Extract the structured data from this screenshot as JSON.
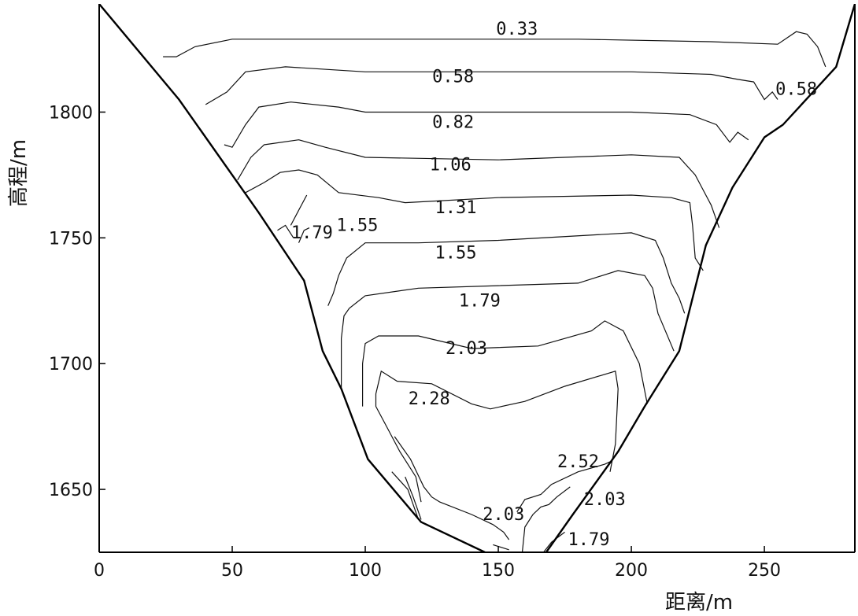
{
  "chart_data": {
    "type": "contour",
    "title": "",
    "xlabel": "距离/m",
    "ylabel": "高程/m",
    "xlim": [
      0,
      284
    ],
    "ylim": [
      1625,
      1843
    ],
    "x_ticks": [
      "0",
      "50",
      "100",
      "150",
      "200",
      "250"
    ],
    "y_ticks": [
      "1650",
      "1700",
      "1750",
      "1800"
    ],
    "valley_boundary": {
      "left": [
        [
          0,
          1843
        ],
        [
          30,
          1805
        ],
        [
          60,
          1760
        ],
        [
          77,
          1733
        ],
        [
          84,
          1705
        ],
        [
          91,
          1690
        ],
        [
          101,
          1662
        ],
        [
          121,
          1637
        ],
        [
          145,
          1625
        ]
      ],
      "right": [
        [
          168,
          1625
        ],
        [
          178,
          1640
        ],
        [
          195,
          1665
        ],
        [
          205,
          1683
        ],
        [
          218,
          1705
        ],
        [
          228,
          1747
        ],
        [
          238,
          1770
        ],
        [
          250,
          1790
        ],
        [
          257,
          1795
        ],
        [
          277,
          1818
        ],
        [
          284,
          1843
        ]
      ]
    },
    "contour_lines": [
      {
        "value": "0.33",
        "points": [
          [
            24,
            1822
          ],
          [
            29,
            1822
          ],
          [
            36,
            1826
          ],
          [
            50,
            1829
          ],
          [
            70,
            1829
          ],
          [
            120,
            1829
          ],
          [
            180,
            1829
          ],
          [
            230,
            1828
          ],
          [
            255,
            1827
          ],
          [
            262,
            1832
          ],
          [
            266,
            1831
          ],
          [
            270,
            1826
          ],
          [
            273,
            1818
          ]
        ]
      },
      {
        "value": "0.58",
        "points": [
          [
            40,
            1803
          ],
          [
            48,
            1808
          ],
          [
            55,
            1816
          ],
          [
            70,
            1818
          ],
          [
            100,
            1816
          ],
          [
            150,
            1816
          ],
          [
            200,
            1816
          ],
          [
            230,
            1815
          ],
          [
            240,
            1813
          ],
          [
            246,
            1812
          ],
          [
            250,
            1805
          ],
          [
            253,
            1808
          ],
          [
            255,
            1805
          ]
        ]
      },
      {
        "value": "0.82",
        "points": [
          [
            47,
            1787
          ],
          [
            50,
            1786
          ],
          [
            55,
            1795
          ],
          [
            60,
            1802
          ],
          [
            72,
            1804
          ],
          [
            90,
            1802
          ],
          [
            100,
            1800
          ],
          [
            150,
            1800
          ],
          [
            200,
            1800
          ],
          [
            222,
            1799
          ],
          [
            232,
            1795
          ],
          [
            237,
            1788
          ],
          [
            240,
            1792
          ],
          [
            244,
            1789
          ]
        ]
      },
      {
        "value": "1.06",
        "points": [
          [
            52,
            1773
          ],
          [
            57,
            1782
          ],
          [
            62,
            1787
          ],
          [
            75,
            1789
          ],
          [
            85,
            1786
          ],
          [
            100,
            1782
          ],
          [
            150,
            1781
          ],
          [
            200,
            1783
          ],
          [
            218,
            1782
          ],
          [
            224,
            1775
          ],
          [
            230,
            1763
          ],
          [
            233,
            1754
          ]
        ]
      },
      {
        "value": "1.31",
        "points": [
          [
            55,
            1768
          ],
          [
            62,
            1772
          ],
          [
            68,
            1776
          ],
          [
            75,
            1777
          ],
          [
            82,
            1775
          ],
          [
            90,
            1768
          ],
          [
            105,
            1766
          ],
          [
            115,
            1764
          ],
          [
            150,
            1766
          ],
          [
            200,
            1767
          ],
          [
            215,
            1766
          ],
          [
            222,
            1764
          ],
          [
            223,
            1755
          ],
          [
            224,
            1742
          ],
          [
            227,
            1737
          ]
        ]
      },
      {
        "value": "1.55",
        "points": [
          [
            86,
            1723
          ],
          [
            88,
            1728
          ],
          [
            90,
            1735
          ],
          [
            93,
            1742
          ],
          [
            100,
            1748
          ],
          [
            120,
            1748
          ],
          [
            150,
            1749
          ],
          [
            200,
            1752
          ],
          [
            209,
            1749
          ],
          [
            212,
            1742
          ],
          [
            215,
            1732
          ],
          [
            218,
            1726
          ],
          [
            220,
            1720
          ]
        ]
      },
      {
        "value": "1.79",
        "points": [
          [
            91,
            1690
          ],
          [
            91,
            1710
          ],
          [
            92,
            1719
          ],
          [
            94,
            1722
          ],
          [
            100,
            1727
          ],
          [
            120,
            1730
          ],
          [
            150,
            1731
          ],
          [
            180,
            1732
          ],
          [
            195,
            1737
          ],
          [
            205,
            1735
          ],
          [
            208,
            1730
          ],
          [
            210,
            1720
          ],
          [
            216,
            1705
          ]
        ]
      },
      {
        "value": "2.03",
        "points": [
          [
            99,
            1683
          ],
          [
            99,
            1700
          ],
          [
            100,
            1708
          ],
          [
            105,
            1711
          ],
          [
            120,
            1711
          ],
          [
            140,
            1706
          ],
          [
            165,
            1707
          ],
          [
            185,
            1713
          ],
          [
            190,
            1717
          ],
          [
            197,
            1713
          ],
          [
            203,
            1700
          ],
          [
            206,
            1684
          ]
        ]
      },
      {
        "value": "2.28",
        "points": [
          [
            121,
            1645
          ],
          [
            119,
            1655
          ],
          [
            113,
            1665
          ],
          [
            108,
            1675
          ],
          [
            104,
            1683
          ],
          [
            104,
            1688
          ],
          [
            106,
            1697
          ],
          [
            112,
            1693
          ],
          [
            125,
            1692
          ],
          [
            140,
            1684
          ],
          [
            147,
            1682
          ],
          [
            160,
            1685
          ],
          [
            175,
            1691
          ],
          [
            194,
            1697
          ],
          [
            195,
            1690
          ],
          [
            194,
            1668
          ],
          [
            192,
            1657
          ]
        ]
      },
      {
        "value": "2.52",
        "points": [
          [
            157,
            1641
          ],
          [
            160,
            1646
          ],
          [
            166,
            1648
          ],
          [
            170,
            1652
          ],
          [
            180,
            1657
          ],
          [
            190,
            1660
          ],
          [
            192,
            1661
          ]
        ]
      },
      {
        "value": "2.03",
        "points": [
          [
            159,
            1625
          ],
          [
            160,
            1635
          ],
          [
            163,
            1640
          ],
          [
            166,
            1643
          ],
          [
            169,
            1644
          ],
          [
            172,
            1647
          ],
          [
            177,
            1651
          ]
        ]
      },
      {
        "value": "1.79",
        "points": [
          [
            167,
            1625
          ],
          [
            170,
            1629
          ],
          [
            175,
            1633
          ]
        ]
      },
      {
        "value": "",
        "points": [
          [
            111,
            1671
          ],
          [
            117,
            1662
          ],
          [
            122,
            1651
          ],
          [
            125,
            1647
          ],
          [
            128,
            1645
          ],
          [
            140,
            1640
          ],
          [
            148,
            1636
          ],
          [
            152,
            1633
          ],
          [
            154,
            1630
          ]
        ]
      },
      {
        "value": "",
        "points": [
          [
            115,
            1655
          ],
          [
            118,
            1647
          ],
          [
            121,
            1638
          ]
        ]
      },
      {
        "value": "",
        "points": [
          [
            110,
            1657
          ],
          [
            116,
            1650
          ],
          [
            120,
            1638
          ]
        ]
      },
      {
        "value": "",
        "points": [
          [
            148,
            1628
          ],
          [
            154,
            1626
          ]
        ]
      },
      {
        "value": "",
        "points": [
          [
            72,
            1755
          ],
          [
            75,
            1761
          ],
          [
            78,
            1767
          ]
        ]
      },
      {
        "value": "",
        "points": [
          [
            67,
            1753
          ],
          [
            70,
            1755
          ],
          [
            73,
            1750
          ]
        ]
      },
      {
        "value": "",
        "points": [
          [
            75,
            1748
          ],
          [
            77,
            1753
          ],
          [
            79,
            1754
          ]
        ]
      }
    ],
    "contour_labels": [
      {
        "text": "0.33",
        "x": 157,
        "y": 1833
      },
      {
        "text": "0.58",
        "x": 133,
        "y": 1814
      },
      {
        "text": "0.58",
        "x": 262,
        "y": 1809
      },
      {
        "text": "0.82",
        "x": 133,
        "y": 1796
      },
      {
        "text": "1.06",
        "x": 132,
        "y": 1779
      },
      {
        "text": "1.31",
        "x": 134,
        "y": 1762
      },
      {
        "text": "1.79",
        "x": 80,
        "y": 1752
      },
      {
        "text": "1.55",
        "x": 97,
        "y": 1755
      },
      {
        "text": "1.55",
        "x": 134,
        "y": 1744
      },
      {
        "text": "1.79",
        "x": 143,
        "y": 1725
      },
      {
        "text": "2.03",
        "x": 138,
        "y": 1706
      },
      {
        "text": "2.28",
        "x": 124,
        "y": 1686
      },
      {
        "text": "2.52",
        "x": 180,
        "y": 1661
      },
      {
        "text": "2.03",
        "x": 190,
        "y": 1646
      },
      {
        "text": "2.03",
        "x": 152,
        "y": 1640
      },
      {
        "text": "1.79",
        "x": 184,
        "y": 1630
      }
    ]
  }
}
